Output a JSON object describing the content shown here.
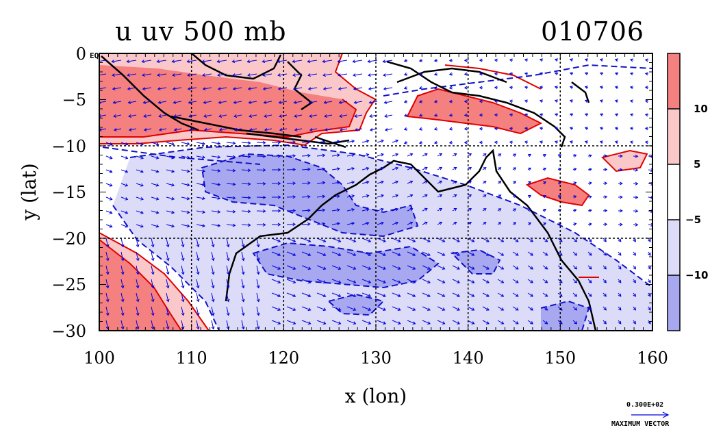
{
  "title": "u uv 500 mb",
  "date": "010706",
  "xlabel": "x (lon)",
  "ylabel": "y (lat)",
  "eq_label": "EQ",
  "x_ticks": [
    "100",
    "110",
    "120",
    "130",
    "140",
    "150",
    "160"
  ],
  "y_ticks": [
    "0",
    "−5",
    "−10",
    "−15",
    "−20",
    "−25",
    "−30"
  ],
  "colorbar": {
    "labels": [
      "10",
      "5",
      "−5",
      "−10"
    ],
    "colors": [
      "#f58080",
      "#fac8c8",
      "#ffffff",
      "#dcdcf8",
      "#a8a8f0"
    ]
  },
  "max_vector": {
    "value": "0.300E+02",
    "label": "MAXIMUM VECTOR"
  },
  "colors": {
    "positive": "#f58080",
    "positive_light": "#fac8c8",
    "negative_light": "#dcdcf8",
    "negative": "#a8a8f0",
    "vector": "#0000dd",
    "pos_contour": "#e00000",
    "neg_contour": "#1010c8",
    "coast": "#000000"
  },
  "chart_data": {
    "type": "heatmap",
    "title": "u uv 500 mb",
    "xlabel": "x (lon)",
    "ylabel": "y (lat)",
    "xlim": [
      100,
      160
    ],
    "ylim": [
      -30,
      0
    ],
    "color_levels": [
      -10,
      -5,
      5,
      10
    ],
    "grid": true,
    "legend": "right"
  }
}
